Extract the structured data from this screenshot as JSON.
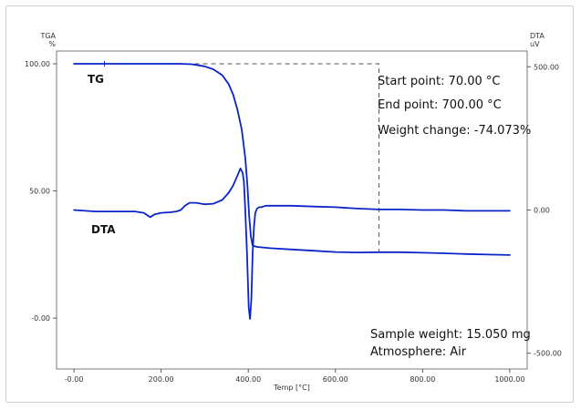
{
  "chart_data": {
    "type": "line",
    "xlabel": "Temp [°C]",
    "xlim": [
      -40,
      1040
    ],
    "x_ticks": [
      "-0.00",
      "200.00",
      "400.00",
      "600.00",
      "800.00",
      "1000.00"
    ],
    "x_tick_values": [
      0,
      200,
      400,
      600,
      800,
      1000
    ],
    "left_axis": {
      "label_line1": "TGA",
      "label_line2": "%",
      "ylim": [
        -20,
        105
      ],
      "ticks": [
        "100.00",
        "50.00",
        "-0.00"
      ],
      "tick_values": [
        100,
        50,
        0
      ]
    },
    "right_axis": {
      "label_line1": "DTA",
      "label_line2": "uV",
      "ylim": [
        -555,
        555
      ],
      "ticks": [
        "500.00",
        "0.00",
        "-500.00"
      ],
      "tick_values": [
        500,
        0,
        -500
      ]
    },
    "series": [
      {
        "name": "TG",
        "axis": "left",
        "color": "#0a24c8",
        "x": [
          0,
          70,
          150,
          200,
          240,
          270,
          300,
          320,
          340,
          355,
          365,
          375,
          385,
          393,
          398,
          402,
          406,
          410,
          420,
          450,
          500,
          550,
          600,
          650,
          700,
          750,
          800,
          850,
          900,
          950,
          1000
        ],
        "y": [
          100,
          100,
          100,
          100,
          100,
          99.8,
          99.0,
          97.8,
          95.5,
          92.0,
          88.0,
          82.0,
          74.0,
          63.0,
          52.0,
          40.0,
          32.0,
          28.5,
          28.0,
          27.5,
          27.0,
          26.5,
          26.0,
          25.8,
          25.9,
          25.9,
          25.7,
          25.5,
          25.2,
          25.0,
          24.8
        ]
      },
      {
        "name": "DTA",
        "axis": "right",
        "color": "#0a24c8",
        "x": [
          0,
          50,
          100,
          140,
          160,
          175,
          185,
          200,
          220,
          235,
          245,
          255,
          265,
          280,
          300,
          320,
          340,
          355,
          365,
          375,
          382,
          387,
          390,
          393,
          397,
          401,
          404,
          407,
          410,
          413,
          416,
          420,
          425,
          430,
          440,
          460,
          500,
          550,
          600,
          650,
          700,
          750,
          800,
          850,
          900,
          950,
          1000
        ],
        "y": [
          0,
          -5,
          -5,
          -5,
          -10,
          -25,
          -15,
          -10,
          -8,
          -5,
          0,
          15,
          25,
          25,
          20,
          22,
          35,
          60,
          85,
          120,
          145,
          130,
          100,
          0,
          -150,
          -340,
          -380,
          -310,
          -150,
          -60,
          -10,
          5,
          10,
          10,
          15,
          15,
          15,
          12,
          10,
          5,
          2,
          2,
          0,
          0,
          -3,
          -3,
          -3
        ]
      }
    ],
    "series_labels": {
      "tg": "TG",
      "dta": "DTA"
    },
    "annotations": {
      "start_point": "Start point: 70.00 °C",
      "end_point": "End point: 700.00 °C",
      "weight_change": "Weight change: -74.073%",
      "sample_weight": "Sample weight: 15.050 mg",
      "atmosphere": "Atmosphere: Air"
    },
    "marker_box": {
      "start_x": 70,
      "end_x": 700,
      "y_top": 100,
      "y_bottom": 25.9
    },
    "grid": false
  }
}
